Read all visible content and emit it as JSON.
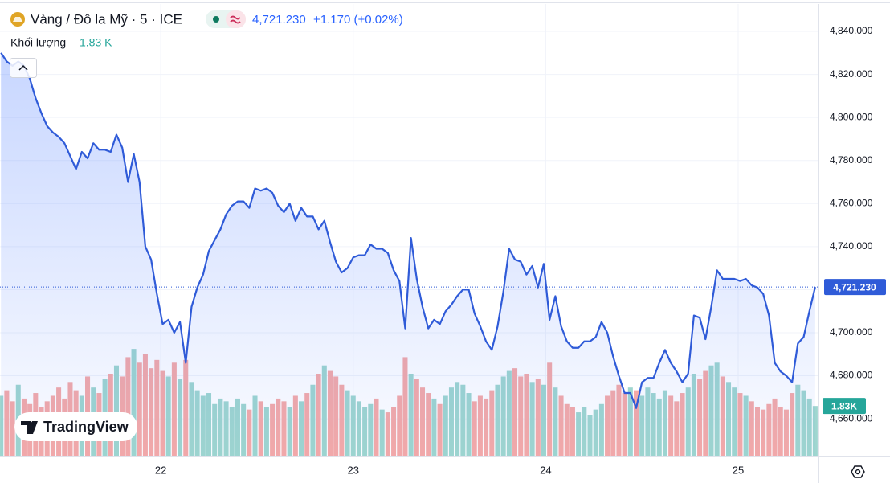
{
  "chart_data": {
    "type": "area",
    "title": "Vàng / Đô la Mỹ · 5 · ICE",
    "last_label": "4,721.230",
    "change": "+1.170 (+0.02%)",
    "logo": "TradingView",
    "color": "#2f5bd8",
    "x": [
      21.17,
      21.2,
      21.23,
      21.26,
      21.29,
      21.32,
      21.35,
      21.38,
      21.41,
      21.44,
      21.47,
      21.5,
      21.53,
      21.56,
      21.59,
      21.62,
      21.65,
      21.68,
      21.71,
      21.74,
      21.77,
      21.8,
      21.83,
      21.86,
      21.89,
      21.92,
      21.95,
      21.98,
      22.01,
      22.04,
      22.07,
      22.1,
      22.13,
      22.16,
      22.19,
      22.22,
      22.25,
      22.28,
      22.31,
      22.34,
      22.37,
      22.4,
      22.43,
      22.46,
      22.49,
      22.52,
      22.55,
      22.58,
      22.61,
      22.64,
      22.67,
      22.7,
      22.73,
      22.76,
      22.79,
      22.82,
      22.85,
      22.88,
      22.91,
      22.94,
      22.97,
      23.0,
      23.03,
      23.06,
      23.09,
      23.12,
      23.15,
      23.18,
      23.21,
      23.24,
      23.27,
      23.3,
      23.33,
      23.36,
      23.39,
      23.42,
      23.45,
      23.48,
      23.51,
      23.54,
      23.57,
      23.6,
      23.63,
      23.66,
      23.69,
      23.72,
      23.75,
      23.78,
      23.81,
      23.84,
      23.87,
      23.9,
      23.93,
      23.96,
      23.99,
      24.02,
      24.05,
      24.08,
      24.11,
      24.14,
      24.17,
      24.2,
      24.23,
      24.26,
      24.29,
      24.32,
      24.35,
      24.38,
      24.41,
      24.44,
      24.47,
      24.5,
      24.53,
      24.56,
      24.59,
      24.62,
      24.65,
      24.68,
      24.71,
      24.74,
      24.77,
      24.8,
      24.83,
      24.86,
      24.89,
      24.92,
      24.95,
      24.98,
      25.01,
      25.04,
      25.07,
      25.1,
      25.13,
      25.16,
      25.19,
      25.22,
      25.25,
      25.28,
      25.31,
      25.34,
      25.37,
      25.4
    ],
    "values": [
      4830,
      4826,
      4824,
      4826,
      4824,
      4818,
      4809,
      4802,
      4796,
      4793,
      4791,
      4788,
      4782,
      4776,
      4784,
      4781,
      4788,
      4785,
      4785,
      4784,
      4792,
      4786,
      4770,
      4783,
      4770,
      4740,
      4734,
      4718,
      4704,
      4706,
      4700,
      4705,
      4686,
      4712,
      4721,
      4727,
      4738,
      4743,
      4748,
      4755,
      4759,
      4761,
      4761,
      4758,
      4767,
      4766,
      4767,
      4765,
      4759,
      4756,
      4760,
      4752,
      4758,
      4754,
      4754,
      4748,
      4752,
      4742,
      4733,
      4728,
      4730,
      4735,
      4736,
      4736,
      4741,
      4739,
      4739,
      4737,
      4729,
      4724,
      4702,
      4744,
      4725,
      4712,
      4702,
      4706,
      4704,
      4710,
      4713,
      4717,
      4720,
      4720,
      4709,
      4703,
      4696,
      4692,
      4703,
      4719,
      4739,
      4734,
      4733,
      4727,
      4731,
      4721,
      4732,
      4706,
      4717,
      4703,
      4696,
      4693,
      4693,
      4696,
      4696,
      4698,
      4705,
      4700,
      4689,
      4680,
      4672,
      4672,
      4665,
      4677,
      4679,
      4679,
      4686,
      4692,
      4686,
      4682,
      4677,
      4681,
      4708,
      4707,
      4697,
      4712,
      4729,
      4725,
      4725,
      4725,
      4724,
      4725,
      4722,
      4721,
      4718,
      4708,
      4686,
      4682,
      4680,
      4677,
      4695,
      4698,
      4710,
      4721.23
    ],
    "xlim": [
      21.165,
      25.413
    ],
    "xticks": [
      22,
      23,
      24,
      25
    ],
    "ylim": [
      4642.5,
      4852.7
    ],
    "yticks": [
      {
        "value": 4660,
        "label": "4,660.000"
      },
      {
        "value": 4680,
        "label": "4,680.000"
      },
      {
        "value": 4700,
        "label": "4,700.000"
      },
      {
        "value": 4720,
        "label": "4,720.000"
      },
      {
        "value": 4740,
        "label": "4,740.000"
      },
      {
        "value": 4760,
        "label": "4,760.000"
      },
      {
        "value": 4780,
        "label": "4,780.000"
      },
      {
        "value": 4800,
        "label": "4,800.000"
      },
      {
        "value": 4820,
        "label": "4,820.000"
      },
      {
        "value": 4840,
        "label": "4,840.000"
      }
    ],
    "grid": true,
    "volume": {
      "label": "Khối lượng",
      "value_label": "1.83 K",
      "badge_label": "1.83K",
      "up_color": "#9fd6cf",
      "down_color": "#f5aaa8",
      "badge_color": "#26a69a",
      "ylim": [
        0,
        16.4
      ],
      "values": [
        2.2,
        2.4,
        2.0,
        2.6,
        2.1,
        1.9,
        2.3,
        1.8,
        2.0,
        2.2,
        2.5,
        2.1,
        2.7,
        2.4,
        2.2,
        2.9,
        2.5,
        2.3,
        2.8,
        3.0,
        3.3,
        2.9,
        3.6,
        3.9,
        3.4,
        3.7,
        3.2,
        3.5,
        3.1,
        2.9,
        3.4,
        2.8,
        3.5,
        2.7,
        2.4,
        2.2,
        2.3,
        1.9,
        2.1,
        2.0,
        1.8,
        2.1,
        1.9,
        1.7,
        2.2,
        2.0,
        1.8,
        1.9,
        2.1,
        2.0,
        1.8,
        2.2,
        2.0,
        2.3,
        2.6,
        3.0,
        3.3,
        3.1,
        2.9,
        2.6,
        2.4,
        2.2,
        2.0,
        1.8,
        1.9,
        2.1,
        1.7,
        1.6,
        1.8,
        2.2,
        3.6,
        3.0,
        2.8,
        2.5,
        2.3,
        2.1,
        1.9,
        2.2,
        2.5,
        2.7,
        2.6,
        2.3,
        2.0,
        2.2,
        2.1,
        2.4,
        2.6,
        2.9,
        3.1,
        3.2,
        2.9,
        3.0,
        2.7,
        2.8,
        2.6,
        3.4,
        2.5,
        2.2,
        1.9,
        1.8,
        1.6,
        1.8,
        1.5,
        1.7,
        1.9,
        2.2,
        2.4,
        2.6,
        2.3,
        2.5,
        2.4,
        2.2,
        2.5,
        2.3,
        2.1,
        2.4,
        2.2,
        2.0,
        2.3,
        2.5,
        3.0,
        2.8,
        3.1,
        3.3,
        3.4,
        2.9,
        2.7,
        2.5,
        2.3,
        2.2,
        2.0,
        1.8,
        1.7,
        1.9,
        2.1,
        1.8,
        1.7,
        2.3,
        2.6,
        2.4,
        2.1,
        1.83
      ]
    }
  }
}
